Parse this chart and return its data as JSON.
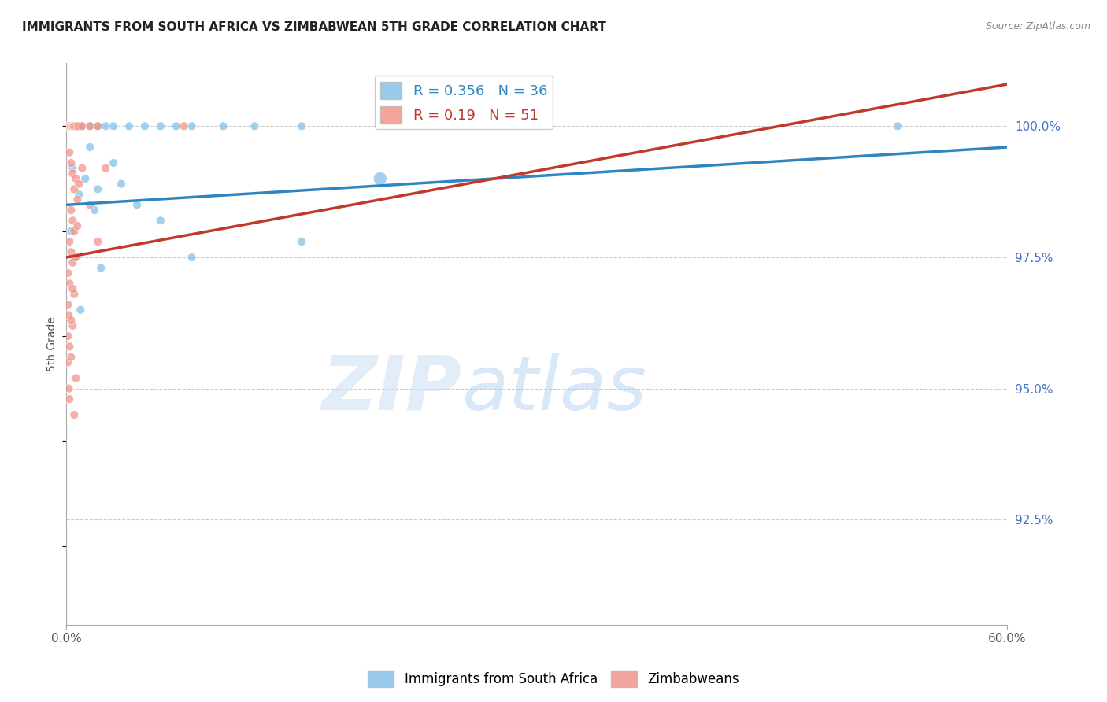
{
  "title": "IMMIGRANTS FROM SOUTH AFRICA VS ZIMBABWEAN 5TH GRADE CORRELATION CHART",
  "source": "Source: ZipAtlas.com",
  "ylabel": "5th Grade",
  "y_ticks": [
    92.5,
    95.0,
    97.5,
    100.0
  ],
  "y_tick_labels": [
    "92.5%",
    "95.0%",
    "97.5%",
    "100.0%"
  ],
  "x_min": 0.0,
  "x_max": 60.0,
  "y_min": 90.5,
  "y_max": 101.2,
  "blue_R": 0.356,
  "blue_N": 36,
  "pink_R": 0.19,
  "pink_N": 51,
  "blue_color": "#85c1e9",
  "pink_color": "#f1948a",
  "blue_line_color": "#2e86c1",
  "pink_line_color": "#c0392b",
  "legend_label_blue": "Immigrants from South Africa",
  "legend_label_pink": "Zimbabweans",
  "watermark_zip": "ZIP",
  "watermark_atlas": "atlas",
  "blue_trend_x": [
    0.0,
    60.0
  ],
  "blue_trend_y": [
    98.5,
    99.6
  ],
  "pink_trend_x": [
    0.0,
    60.0
  ],
  "pink_trend_y": [
    97.5,
    100.8
  ],
  "blue_points": [
    [
      0.1,
      100.0
    ],
    [
      0.2,
      100.0
    ],
    [
      0.3,
      100.0
    ],
    [
      0.5,
      100.0
    ],
    [
      0.7,
      100.0
    ],
    [
      1.0,
      100.0
    ],
    [
      1.5,
      100.0
    ],
    [
      2.0,
      100.0
    ],
    [
      2.5,
      100.0
    ],
    [
      3.0,
      100.0
    ],
    [
      4.0,
      100.0
    ],
    [
      5.0,
      100.0
    ],
    [
      6.0,
      100.0
    ],
    [
      7.0,
      100.0
    ],
    [
      8.0,
      100.0
    ],
    [
      10.0,
      100.0
    ],
    [
      12.0,
      100.0
    ],
    [
      15.0,
      100.0
    ],
    [
      0.4,
      99.2
    ],
    [
      1.2,
      99.0
    ],
    [
      2.0,
      98.8
    ],
    [
      3.0,
      99.3
    ],
    [
      4.5,
      98.5
    ],
    [
      1.8,
      98.4
    ],
    [
      0.8,
      98.7
    ],
    [
      0.5,
      97.5
    ],
    [
      2.2,
      97.3
    ],
    [
      0.3,
      98.0
    ],
    [
      6.0,
      98.2
    ],
    [
      15.0,
      97.8
    ],
    [
      8.0,
      97.5
    ],
    [
      0.9,
      96.5
    ],
    [
      3.5,
      98.9
    ],
    [
      1.5,
      99.6
    ],
    [
      53.0,
      100.0
    ],
    [
      20.0,
      99.0
    ]
  ],
  "blue_point_sizes": [
    60,
    60,
    60,
    60,
    60,
    60,
    60,
    60,
    60,
    60,
    60,
    60,
    60,
    60,
    60,
    60,
    60,
    60,
    60,
    60,
    60,
    60,
    60,
    60,
    60,
    60,
    60,
    60,
    60,
    60,
    60,
    60,
    60,
    60,
    60,
    150
  ],
  "pink_points": [
    [
      0.1,
      100.0
    ],
    [
      0.15,
      100.0
    ],
    [
      0.2,
      100.0
    ],
    [
      0.25,
      100.0
    ],
    [
      0.3,
      100.0
    ],
    [
      0.35,
      100.0
    ],
    [
      0.4,
      100.0
    ],
    [
      0.45,
      100.0
    ],
    [
      0.5,
      100.0
    ],
    [
      0.6,
      100.0
    ],
    [
      0.7,
      100.0
    ],
    [
      0.8,
      100.0
    ],
    [
      1.0,
      100.0
    ],
    [
      1.5,
      100.0
    ],
    [
      2.0,
      100.0
    ],
    [
      0.2,
      99.5
    ],
    [
      0.3,
      99.3
    ],
    [
      0.4,
      99.1
    ],
    [
      0.6,
      99.0
    ],
    [
      0.5,
      98.8
    ],
    [
      0.7,
      98.6
    ],
    [
      0.3,
      98.4
    ],
    [
      0.4,
      98.2
    ],
    [
      0.5,
      98.0
    ],
    [
      0.2,
      97.8
    ],
    [
      0.3,
      97.6
    ],
    [
      0.4,
      97.4
    ],
    [
      0.1,
      97.2
    ],
    [
      0.2,
      97.0
    ],
    [
      0.1,
      96.6
    ],
    [
      0.15,
      96.4
    ],
    [
      0.1,
      96.0
    ],
    [
      0.2,
      95.8
    ],
    [
      0.1,
      95.5
    ],
    [
      0.15,
      95.0
    ],
    [
      0.2,
      94.8
    ],
    [
      1.5,
      98.5
    ],
    [
      2.5,
      99.2
    ],
    [
      0.5,
      96.8
    ],
    [
      0.4,
      96.2
    ],
    [
      0.3,
      95.6
    ],
    [
      0.6,
      95.2
    ],
    [
      0.5,
      94.5
    ],
    [
      7.5,
      100.0
    ],
    [
      1.0,
      99.2
    ],
    [
      0.8,
      98.9
    ],
    [
      0.7,
      98.1
    ],
    [
      0.6,
      97.5
    ],
    [
      0.4,
      96.9
    ],
    [
      0.3,
      96.3
    ],
    [
      2.0,
      97.8
    ]
  ],
  "pink_point_sizes": [
    60,
    60,
    60,
    60,
    60,
    60,
    60,
    60,
    60,
    60,
    60,
    60,
    60,
    60,
    60,
    60,
    60,
    60,
    60,
    60,
    60,
    60,
    60,
    60,
    60,
    60,
    60,
    60,
    60,
    60,
    60,
    60,
    60,
    60,
    60,
    60,
    60,
    60,
    60,
    60,
    60,
    60,
    60,
    60,
    60,
    60,
    60,
    60,
    60,
    60,
    60
  ]
}
